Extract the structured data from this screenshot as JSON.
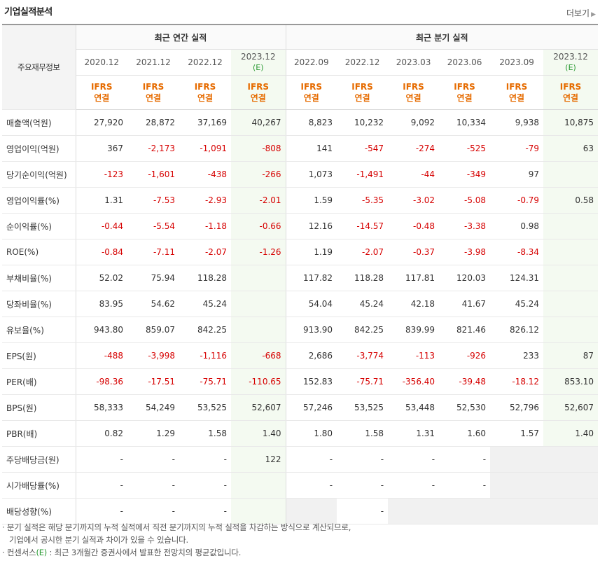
{
  "title": "기업실적분석",
  "more": "더보기",
  "header": {
    "row_label": "주요재무정보",
    "annual_group": "최근 연간 실적",
    "quarter_group": "최근 분기 실적",
    "annual_periods": [
      "2020.12",
      "2021.12",
      "2022.12",
      "2023.12"
    ],
    "quarter_periods": [
      "2022.09",
      "2022.12",
      "2023.03",
      "2023.06",
      "2023.09",
      "2023.12"
    ],
    "estimate_mark": "(E)",
    "ifrs_line1": "IFRS",
    "ifrs_line2": "연결"
  },
  "rows": [
    {
      "label": "매출액(억원)",
      "values": [
        "27,920",
        "28,872",
        "37,169",
        "40,267",
        "8,823",
        "10,232",
        "9,092",
        "10,334",
        "9,938",
        "10,875"
      ]
    },
    {
      "label": "영업이익(억원)",
      "values": [
        "367",
        "-2,173",
        "-1,091",
        "-808",
        "141",
        "-547",
        "-274",
        "-525",
        "-79",
        "63"
      ]
    },
    {
      "label": "당기순이익(억원)",
      "values": [
        "-123",
        "-1,601",
        "-438",
        "-266",
        "1,073",
        "-1,491",
        "-44",
        "-349",
        "97",
        ""
      ]
    },
    {
      "label": "영업이익률(%)",
      "values": [
        "1.31",
        "-7.53",
        "-2.93",
        "-2.01",
        "1.59",
        "-5.35",
        "-3.02",
        "-5.08",
        "-0.79",
        "0.58"
      ]
    },
    {
      "label": "순이익률(%)",
      "values": [
        "-0.44",
        "-5.54",
        "-1.18",
        "-0.66",
        "12.16",
        "-14.57",
        "-0.48",
        "-3.38",
        "0.98",
        ""
      ]
    },
    {
      "label": "ROE(%)",
      "values": [
        "-0.84",
        "-7.11",
        "-2.07",
        "-1.26",
        "1.19",
        "-2.07",
        "-0.37",
        "-3.98",
        "-8.34",
        ""
      ]
    },
    {
      "label": "부채비율(%)",
      "values": [
        "52.02",
        "75.94",
        "118.28",
        "",
        "117.82",
        "118.28",
        "117.81",
        "120.03",
        "124.31",
        ""
      ]
    },
    {
      "label": "당좌비율(%)",
      "values": [
        "83.95",
        "54.62",
        "45.24",
        "",
        "54.04",
        "45.24",
        "42.18",
        "41.67",
        "45.24",
        ""
      ]
    },
    {
      "label": "유보율(%)",
      "values": [
        "943.80",
        "859.07",
        "842.25",
        "",
        "913.90",
        "842.25",
        "839.99",
        "821.46",
        "826.12",
        ""
      ]
    },
    {
      "label": "EPS(원)",
      "values": [
        "-488",
        "-3,998",
        "-1,116",
        "-668",
        "2,686",
        "-3,774",
        "-113",
        "-926",
        "233",
        "87"
      ]
    },
    {
      "label": "PER(배)",
      "values": [
        "-98.36",
        "-17.51",
        "-75.71",
        "-110.65",
        "152.83",
        "-75.71",
        "-356.40",
        "-39.48",
        "-18.12",
        "853.10"
      ]
    },
    {
      "label": "BPS(원)",
      "values": [
        "58,333",
        "54,249",
        "53,525",
        "52,607",
        "57,246",
        "53,525",
        "53,448",
        "52,530",
        "52,796",
        "52,607"
      ]
    },
    {
      "label": "PBR(배)",
      "values": [
        "0.82",
        "1.29",
        "1.58",
        "1.40",
        "1.80",
        "1.58",
        "1.31",
        "1.60",
        "1.57",
        "1.40"
      ]
    },
    {
      "label": "주당배당금(원)",
      "values": [
        "-",
        "-",
        "-",
        "122",
        "-",
        "-",
        "-",
        "-",
        "",
        ""
      ]
    },
    {
      "label": "시가배당률(%)",
      "values": [
        "-",
        "-",
        "-",
        "",
        "-",
        "-",
        "-",
        "-",
        "",
        ""
      ]
    },
    {
      "label": "배당성향(%)",
      "values": [
        "-",
        "-",
        "-",
        "",
        "",
        "-",
        "",
        "",
        "",
        ""
      ]
    }
  ],
  "notes": {
    "line1": "· 분기 실적은 해당 분기까지의 누적 실적에서 직전 분기까지의 누적 실적을 차감하는 방식으로 계산되므로,",
    "line2": "기업에서 공시한 분기 실적과 차이가 있을 수 있습니다.",
    "line3_prefix": "· 컨센서스",
    "line3_mark": "(E)",
    "line3_suffix": " : 최근 3개월간 증권사에서 발표한 전망치의 평균값입니다."
  },
  "colors": {
    "negative": "#d60000",
    "ifrs": "#e66b00",
    "estimate": "#2a9a33",
    "estimate_bg": "#f4faf1"
  }
}
